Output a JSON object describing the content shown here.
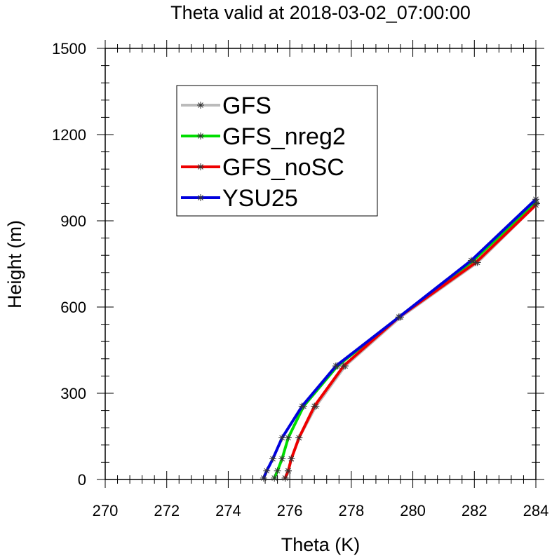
{
  "chart_data": {
    "type": "line",
    "title": "Theta valid at 2018-03-02_07:00:00",
    "xlabel": "Theta (K)",
    "ylabel": "Height (m)",
    "xlim": [
      270,
      284
    ],
    "ylim": [
      0,
      1500
    ],
    "xticks": [
      "270",
      "272",
      "274",
      "276",
      "278",
      "280",
      "282",
      "284"
    ],
    "yticks": [
      "0",
      "300",
      "600",
      "900",
      "1200",
      "1500"
    ],
    "xticks_values": [
      270,
      272,
      274,
      276,
      278,
      280,
      282,
      284
    ],
    "yticks_values": [
      0,
      300,
      600,
      900,
      1200,
      1500
    ],
    "grid": false,
    "legend_position": "upper-left",
    "series": [
      {
        "name": "GFS",
        "color": "#bbbbbb",
        "x": [
          275.85,
          275.95,
          276.05,
          276.3,
          276.85,
          277.8,
          279.6,
          282.1,
          284.0
        ],
        "y": [
          5,
          30,
          72,
          145,
          255,
          395,
          565,
          755,
          955
        ]
      },
      {
        "name": "GFS_nreg2",
        "color": "#00dd00",
        "x": [
          275.5,
          275.6,
          275.75,
          275.95,
          276.45,
          277.55,
          279.55,
          281.95,
          284.0
        ],
        "y": [
          5,
          30,
          72,
          145,
          255,
          395,
          565,
          760,
          965
        ]
      },
      {
        "name": "GFS_noSC",
        "color": "#ee0000",
        "x": [
          275.85,
          275.95,
          276.05,
          276.3,
          276.8,
          277.75,
          279.55,
          282.05,
          284.0
        ],
        "y": [
          5,
          30,
          72,
          145,
          255,
          395,
          565,
          755,
          955
        ]
      },
      {
        "name": "YSU25",
        "color": "#0000dd",
        "x": [
          275.15,
          275.25,
          275.45,
          275.75,
          276.4,
          277.5,
          279.55,
          281.9,
          284.0
        ],
        "y": [
          5,
          30,
          72,
          145,
          255,
          395,
          565,
          762,
          975
        ]
      }
    ]
  }
}
